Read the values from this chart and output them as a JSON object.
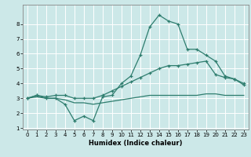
{
  "xlabel": "Humidex (Indice chaleur)",
  "background_color": "#cce8e8",
  "grid_color": "#ffffff",
  "line_color": "#2e7d6e",
  "x_data": [
    0,
    1,
    2,
    3,
    4,
    5,
    6,
    7,
    8,
    9,
    10,
    11,
    12,
    13,
    14,
    15,
    16,
    17,
    18,
    19,
    20,
    21,
    22,
    23
  ],
  "line1": [
    3.0,
    3.2,
    3.0,
    3.0,
    2.6,
    1.5,
    1.8,
    1.5,
    3.1,
    3.2,
    4.0,
    4.5,
    5.9,
    7.8,
    8.6,
    8.2,
    8.0,
    6.3,
    6.3,
    5.9,
    5.5,
    4.5,
    4.3,
    3.9
  ],
  "line2": [
    3.0,
    3.2,
    3.1,
    3.2,
    3.2,
    3.0,
    3.0,
    3.0,
    3.2,
    3.5,
    3.8,
    4.1,
    4.4,
    4.7,
    5.0,
    5.2,
    5.2,
    5.3,
    5.4,
    5.5,
    4.6,
    4.4,
    4.3,
    4.0
  ],
  "line3": [
    3.0,
    3.1,
    3.0,
    3.0,
    2.9,
    2.7,
    2.7,
    2.6,
    2.7,
    2.8,
    2.9,
    3.0,
    3.1,
    3.2,
    3.2,
    3.2,
    3.2,
    3.2,
    3.2,
    3.3,
    3.3,
    3.2,
    3.2,
    3.2
  ],
  "ylim": [
    1,
    9
  ],
  "xlim": [
    -0.5,
    23.5
  ],
  "yticks": [
    1,
    2,
    3,
    4,
    5,
    6,
    7,
    8
  ],
  "xticks": [
    0,
    1,
    2,
    3,
    4,
    5,
    6,
    7,
    8,
    9,
    10,
    11,
    12,
    13,
    14,
    15,
    16,
    17,
    18,
    19,
    20,
    21,
    22,
    23
  ]
}
